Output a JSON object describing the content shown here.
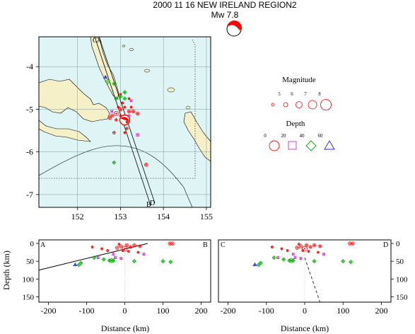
{
  "title": "2000 11 16 NEW IRELAND REGION2",
  "mechanism": {
    "label": "Mw  7.8"
  },
  "legend": {
    "magnitude_title": "Magnitude",
    "magnitudes": [
      "5",
      "6",
      "7",
      "8"
    ],
    "depth_title": "Depth",
    "depths": [
      "0",
      "20",
      "40",
      "60"
    ]
  },
  "map": {
    "xticks": [
      "152",
      "153",
      "154",
      "155"
    ],
    "yticks": [
      "-4",
      "-5",
      "-6",
      "-7"
    ],
    "profile_labels": [
      "C",
      "A",
      "B",
      "D"
    ]
  },
  "sections": [
    {
      "left_label": "A",
      "right_label": "B"
    },
    {
      "left_label": "C",
      "right_label": "D"
    }
  ],
  "axes": {
    "xlabel": "Distance (km)",
    "ylabel": "Depth (km)",
    "xticks": [
      "-200",
      "-100",
      "0",
      "100",
      "200"
    ],
    "yticks": [
      "0",
      "50",
      "100",
      "150"
    ]
  },
  "colors": {
    "ocean": "#dff5f5",
    "land": "#f6f0c8",
    "shallow": "#ff0000",
    "mid": "#cc33cc",
    "deep": "#00aa00",
    "deepest": "#2222cc"
  },
  "chart_data": [
    {
      "type": "scatter",
      "name": "map",
      "xlim": [
        151.1,
        155.1
      ],
      "ylim": [
        -7.3,
        -3.3
      ],
      "events": [
        {
          "lon": 153.1,
          "lat": -5.25,
          "mag": 7.8,
          "cls": "mainshock"
        },
        {
          "lon": 152.9,
          "lat": -5.1,
          "mag": 6.0,
          "cls": "shallow"
        },
        {
          "lon": 152.8,
          "lat": -5.15,
          "mag": 5.5,
          "cls": "shallow"
        },
        {
          "lon": 152.75,
          "lat": -5.2,
          "mag": 5.5,
          "cls": "shallow"
        },
        {
          "lon": 153.2,
          "lat": -5.05,
          "mag": 5.5,
          "cls": "shallow"
        },
        {
          "lon": 153.3,
          "lat": -5.05,
          "mag": 5.5,
          "cls": "shallow"
        },
        {
          "lon": 153.4,
          "lat": -5.1,
          "mag": 5.5,
          "cls": "shallow"
        },
        {
          "lon": 153.0,
          "lat": -5.0,
          "mag": 5.5,
          "cls": "shallow"
        },
        {
          "lon": 152.9,
          "lat": -5.25,
          "mag": 5.2,
          "cls": "shallow"
        },
        {
          "lon": 153.15,
          "lat": -5.45,
          "mag": 5.2,
          "cls": "shallow"
        },
        {
          "lon": 153.6,
          "lat": -6.3,
          "mag": 5.5,
          "cls": "shallow"
        },
        {
          "lon": 152.85,
          "lat": -5.55,
          "mag": 5.3,
          "cls": "shallow"
        },
        {
          "lon": 153.0,
          "lat": -4.65,
          "mag": 5.0,
          "cls": "shallow"
        },
        {
          "lon": 153.05,
          "lat": -4.85,
          "mag": 5.0,
          "cls": "shallow"
        },
        {
          "lon": 153.2,
          "lat": -4.75,
          "mag": 5.0,
          "cls": "shallow"
        },
        {
          "lon": 152.95,
          "lat": -4.95,
          "mag": 5.0,
          "cls": "shallow"
        },
        {
          "lon": 153.1,
          "lat": -4.95,
          "mag": 5.0,
          "cls": "shallow"
        },
        {
          "lon": 153.15,
          "lat": -5.3,
          "mag": 5.0,
          "cls": "shallow"
        },
        {
          "lon": 153.0,
          "lat": -5.15,
          "mag": 5.0,
          "cls": "shallow"
        },
        {
          "lon": 153.25,
          "lat": -4.95,
          "mag": 5.0,
          "cls": "shallow"
        },
        {
          "lon": 153.1,
          "lat": -5.55,
          "mag": 5.0,
          "cls": "shallow"
        },
        {
          "lon": 153.4,
          "lat": -5.6,
          "mag": 5.2,
          "cls": "mid"
        },
        {
          "lon": 153.25,
          "lat": -4.8,
          "mag": 5.0,
          "cls": "mid"
        },
        {
          "lon": 153.2,
          "lat": -5.15,
          "mag": 5.0,
          "cls": "mid"
        },
        {
          "lon": 152.8,
          "lat": -5.05,
          "mag": 5.0,
          "cls": "mid"
        },
        {
          "lon": 152.7,
          "lat": -4.35,
          "mag": 5.5,
          "cls": "deep"
        },
        {
          "lon": 152.85,
          "lat": -4.4,
          "mag": 5.0,
          "cls": "deep"
        },
        {
          "lon": 152.9,
          "lat": -4.75,
          "mag": 5.0,
          "cls": "deep"
        },
        {
          "lon": 153.0,
          "lat": -4.7,
          "mag": 5.0,
          "cls": "deep"
        },
        {
          "lon": 153.1,
          "lat": -4.75,
          "mag": 5.0,
          "cls": "deep"
        },
        {
          "lon": 152.85,
          "lat": -6.25,
          "mag": 5.0,
          "cls": "deep"
        },
        {
          "lon": 153.1,
          "lat": -4.6,
          "mag": 5.0,
          "cls": "deep"
        },
        {
          "lon": 152.65,
          "lat": -4.25,
          "mag": 5.0,
          "cls": "deepest"
        }
      ]
    },
    {
      "type": "scatter",
      "name": "section-AB",
      "xlim": [
        -225,
        225
      ],
      "ylim": [
        165,
        -10
      ],
      "line": [
        [
          -225,
          75
        ],
        [
          60,
          0
        ]
      ],
      "events": [
        {
          "x": 0,
          "d": 15,
          "mag": 7.8,
          "cls": "shallow"
        },
        {
          "x": -10,
          "d": 8,
          "mag": 5.5,
          "cls": "shallow"
        },
        {
          "x": 5,
          "d": 5,
          "mag": 5.5,
          "cls": "shallow"
        },
        {
          "x": -20,
          "d": 12,
          "mag": 5.5,
          "cls": "shallow"
        },
        {
          "x": 15,
          "d": 10,
          "mag": 5.3,
          "cls": "shallow"
        },
        {
          "x": 25,
          "d": 5,
          "mag": 5.5,
          "cls": "shallow"
        },
        {
          "x": 40,
          "d": 8,
          "mag": 5.3,
          "cls": "shallow"
        },
        {
          "x": -15,
          "d": 2,
          "mag": 5.0,
          "cls": "shallow"
        },
        {
          "x": -5,
          "d": 20,
          "mag": 5.0,
          "cls": "shallow"
        },
        {
          "x": 118,
          "d": 0,
          "mag": 5.5,
          "cls": "shallow"
        },
        {
          "x": 125,
          "d": 0,
          "mag": 5.5,
          "cls": "shallow"
        },
        {
          "x": -45,
          "d": 20,
          "mag": 5.0,
          "cls": "shallow"
        },
        {
          "x": -85,
          "d": 10,
          "mag": 5.0,
          "cls": "shallow"
        },
        {
          "x": -60,
          "d": 15,
          "mag": 5.0,
          "cls": "shallow"
        },
        {
          "x": 10,
          "d": 22,
          "mag": 5.0,
          "cls": "shallow"
        },
        {
          "x": 35,
          "d": 25,
          "mag": 5.0,
          "cls": "shallow"
        },
        {
          "x": -30,
          "d": 30,
          "mag": 5.0,
          "cls": "mid"
        },
        {
          "x": -25,
          "d": 40,
          "mag": 5.0,
          "cls": "mid"
        },
        {
          "x": 50,
          "d": 30,
          "mag": 5.0,
          "cls": "mid"
        },
        {
          "x": -70,
          "d": 40,
          "mag": 5.0,
          "cls": "mid"
        },
        {
          "x": -10,
          "d": 42,
          "mag": 5.0,
          "cls": "mid"
        },
        {
          "x": -35,
          "d": 48,
          "mag": 5.5,
          "cls": "deep"
        },
        {
          "x": -30,
          "d": 48,
          "mag": 5.0,
          "cls": "deep"
        },
        {
          "x": -115,
          "d": 55,
          "mag": 5.0,
          "cls": "deep"
        },
        {
          "x": -120,
          "d": 60,
          "mag": 5.0,
          "cls": "deep"
        },
        {
          "x": -80,
          "d": 40,
          "mag": 5.0,
          "cls": "deep"
        },
        {
          "x": -55,
          "d": 45,
          "mag": 5.0,
          "cls": "deep"
        },
        {
          "x": -40,
          "d": 48,
          "mag": 5.0,
          "cls": "deep"
        },
        {
          "x": 25,
          "d": 50,
          "mag": 5.0,
          "cls": "deep"
        },
        {
          "x": 100,
          "d": 50,
          "mag": 5.0,
          "cls": "deep"
        },
        {
          "x": 120,
          "d": 52,
          "mag": 5.0,
          "cls": "deep"
        },
        {
          "x": -130,
          "d": 60,
          "mag": 5.0,
          "cls": "deepest"
        }
      ]
    },
    {
      "type": "scatter",
      "name": "section-CD",
      "xlim": [
        -225,
        225
      ],
      "ylim": [
        165,
        -10
      ],
      "dashed": [
        [
          0,
          40
        ],
        [
          40,
          165
        ]
      ],
      "events": [
        {
          "x": 0,
          "d": 15,
          "mag": 7.8,
          "cls": "shallow"
        },
        {
          "x": -10,
          "d": 8,
          "mag": 5.5,
          "cls": "shallow"
        },
        {
          "x": 5,
          "d": 5,
          "mag": 5.5,
          "cls": "shallow"
        },
        {
          "x": -20,
          "d": 12,
          "mag": 5.5,
          "cls": "shallow"
        },
        {
          "x": 15,
          "d": 10,
          "mag": 5.3,
          "cls": "shallow"
        },
        {
          "x": 25,
          "d": 5,
          "mag": 5.5,
          "cls": "shallow"
        },
        {
          "x": 40,
          "d": 8,
          "mag": 5.3,
          "cls": "shallow"
        },
        {
          "x": -15,
          "d": 2,
          "mag": 5.0,
          "cls": "shallow"
        },
        {
          "x": -5,
          "d": 20,
          "mag": 5.0,
          "cls": "shallow"
        },
        {
          "x": 118,
          "d": 0,
          "mag": 5.5,
          "cls": "shallow"
        },
        {
          "x": 125,
          "d": 0,
          "mag": 5.5,
          "cls": "shallow"
        },
        {
          "x": -45,
          "d": 20,
          "mag": 5.0,
          "cls": "shallow"
        },
        {
          "x": -85,
          "d": 10,
          "mag": 5.0,
          "cls": "shallow"
        },
        {
          "x": -60,
          "d": 15,
          "mag": 5.0,
          "cls": "shallow"
        },
        {
          "x": 10,
          "d": 22,
          "mag": 5.0,
          "cls": "shallow"
        },
        {
          "x": 35,
          "d": 25,
          "mag": 5.0,
          "cls": "shallow"
        },
        {
          "x": -30,
          "d": 30,
          "mag": 5.0,
          "cls": "mid"
        },
        {
          "x": -25,
          "d": 40,
          "mag": 5.0,
          "cls": "mid"
        },
        {
          "x": 50,
          "d": 30,
          "mag": 5.0,
          "cls": "mid"
        },
        {
          "x": -70,
          "d": 40,
          "mag": 5.0,
          "cls": "mid"
        },
        {
          "x": -10,
          "d": 42,
          "mag": 5.0,
          "cls": "mid"
        },
        {
          "x": -35,
          "d": 48,
          "mag": 5.5,
          "cls": "deep"
        },
        {
          "x": -30,
          "d": 48,
          "mag": 5.0,
          "cls": "deep"
        },
        {
          "x": -115,
          "d": 55,
          "mag": 5.0,
          "cls": "deep"
        },
        {
          "x": -120,
          "d": 60,
          "mag": 5.0,
          "cls": "deep"
        },
        {
          "x": -80,
          "d": 40,
          "mag": 5.0,
          "cls": "deep"
        },
        {
          "x": -55,
          "d": 45,
          "mag": 5.0,
          "cls": "deep"
        },
        {
          "x": -40,
          "d": 48,
          "mag": 5.0,
          "cls": "deep"
        },
        {
          "x": 25,
          "d": 50,
          "mag": 5.0,
          "cls": "deep"
        },
        {
          "x": 100,
          "d": 50,
          "mag": 5.0,
          "cls": "deep"
        },
        {
          "x": 120,
          "d": 52,
          "mag": 5.0,
          "cls": "deep"
        },
        {
          "x": -130,
          "d": 60,
          "mag": 5.0,
          "cls": "deepest"
        }
      ]
    }
  ]
}
